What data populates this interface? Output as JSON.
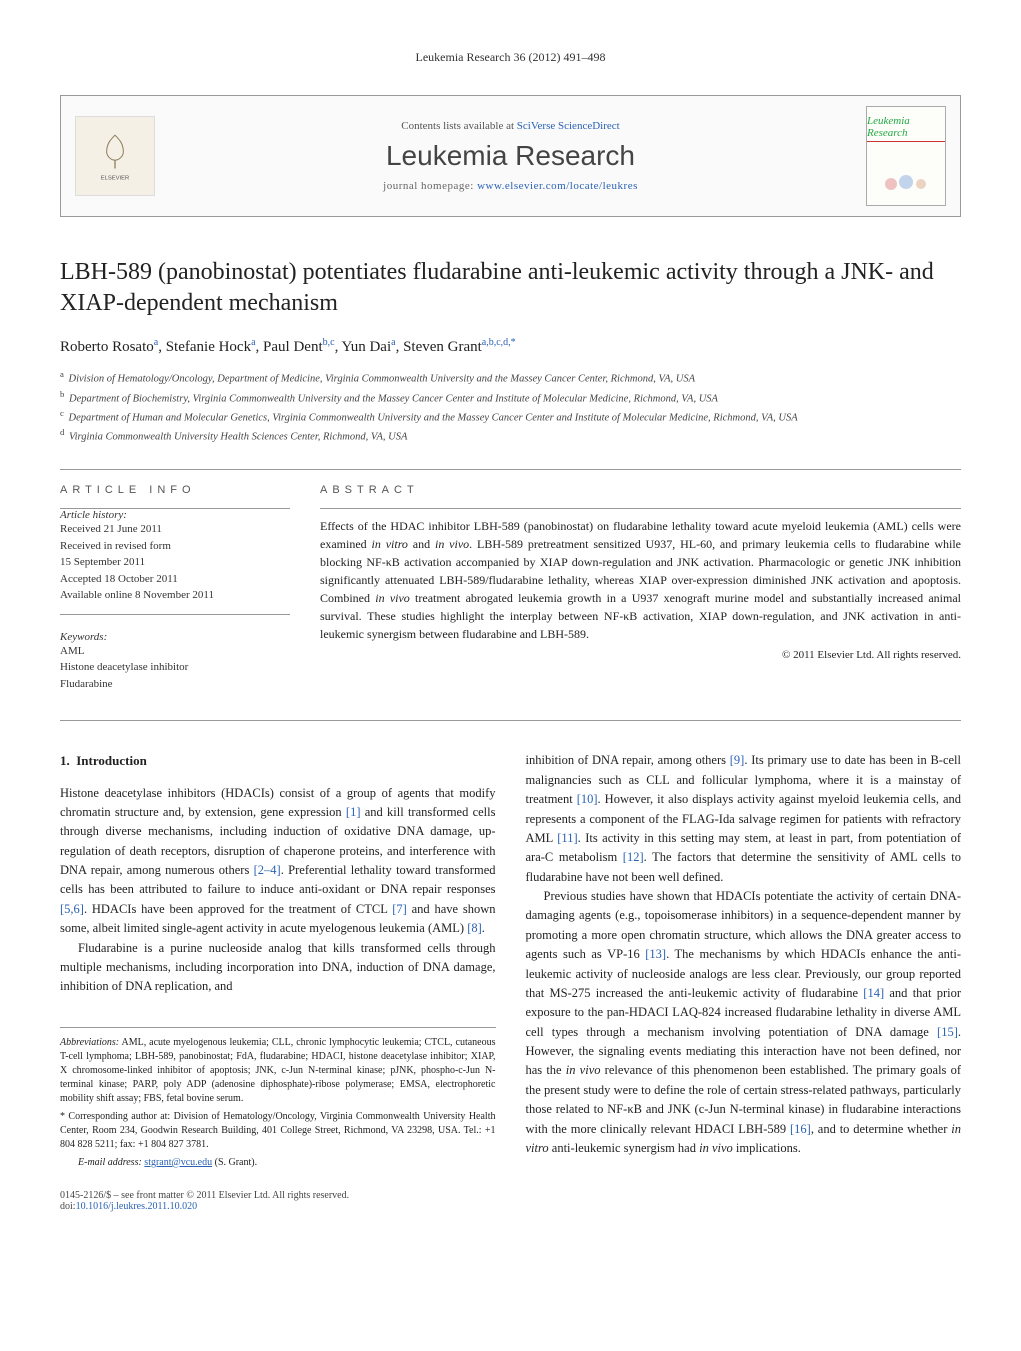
{
  "running_header": "Leukemia Research 36 (2012) 491–498",
  "masthead": {
    "contents_prefix": "Contents lists available at ",
    "contents_link": "SciVerse ScienceDirect",
    "journal_name": "Leukemia Research",
    "homepage_prefix": "journal homepage: ",
    "homepage_link": "www.elsevier.com/locate/leukres",
    "publisher_logo_label": "ELSEVIER",
    "cover_title": "Leukemia Research"
  },
  "title": "LBH-589 (panobinostat) potentiates fludarabine anti-leukemic activity through a JNK- and XIAP-dependent mechanism",
  "authors": [
    {
      "name": "Roberto Rosato",
      "sup": "a"
    },
    {
      "name": "Stefanie Hock",
      "sup": "a"
    },
    {
      "name": "Paul Dent",
      "sup": "b,c"
    },
    {
      "name": "Yun Dai",
      "sup": "a"
    },
    {
      "name": "Steven Grant",
      "sup": "a,b,c,d,*"
    }
  ],
  "affiliations": [
    {
      "sup": "a",
      "text": "Division of Hematology/Oncology, Department of Medicine, Virginia Commonwealth University and the Massey Cancer Center, Richmond, VA, USA"
    },
    {
      "sup": "b",
      "text": "Department of Biochemistry, Virginia Commonwealth University and the Massey Cancer Center and Institute of Molecular Medicine, Richmond, VA, USA"
    },
    {
      "sup": "c",
      "text": "Department of Human and Molecular Genetics, Virginia Commonwealth University and the Massey Cancer Center and Institute of Molecular Medicine, Richmond, VA, USA"
    },
    {
      "sup": "d",
      "text": "Virginia Commonwealth University Health Sciences Center, Richmond, VA, USA"
    }
  ],
  "article_info": {
    "heading": "article info",
    "history_label": "Article history:",
    "history": [
      "Received 21 June 2011",
      "Received in revised form",
      "15 September 2011",
      "Accepted 18 October 2011",
      "Available online 8 November 2011"
    ],
    "keywords_label": "Keywords:",
    "keywords": [
      "AML",
      "Histone deacetylase inhibitor",
      "Fludarabine"
    ]
  },
  "abstract": {
    "heading": "abstract",
    "text": "Effects of the HDAC inhibitor LBH-589 (panobinostat) on fludarabine lethality toward acute myeloid leukemia (AML) cells were examined in vitro and in vivo. LBH-589 pretreatment sensitized U937, HL-60, and primary leukemia cells to fludarabine while blocking NF-κB activation accompanied by XIAP down-regulation and JNK activation. Pharmacologic or genetic JNK inhibition significantly attenuated LBH-589/fludarabine lethality, whereas XIAP over-expression diminished JNK activation and apoptosis. Combined in vivo treatment abrogated leukemia growth in a U937 xenograft murine model and substantially increased animal survival. These studies highlight the interplay between NF-κB activation, XIAP down-regulation, and JNK activation in anti-leukemic synergism between fludarabine and LBH-589.",
    "copyright": "© 2011 Elsevier Ltd. All rights reserved."
  },
  "body": {
    "section_number": "1.",
    "section_title": "Introduction",
    "col1_p1": "Histone deacetylase inhibitors (HDACIs) consist of a group of agents that modify chromatin structure and, by extension, gene expression [1] and kill transformed cells through diverse mechanisms, including induction of oxidative DNA damage, up-regulation of death receptors, disruption of chaperone proteins, and interference with DNA repair, among numerous others [2–4]. Preferential lethality toward transformed cells has been attributed to failure to induce anti-oxidant or DNA repair responses [5,6]. HDACIs have been approved for the treatment of CTCL [7] and have shown some, albeit limited single-agent activity in acute myelogenous leukemia (AML) [8].",
    "col1_p2": "Fludarabine is a purine nucleoside analog that kills transformed cells through multiple mechanisms, including incorporation into DNA, induction of DNA damage, inhibition of DNA replication, and",
    "col2_p1": "inhibition of DNA repair, among others [9]. Its primary use to date has been in B-cell malignancies such as CLL and follicular lymphoma, where it is a mainstay of treatment [10]. However, it also displays activity against myeloid leukemia cells, and represents a component of the FLAG-Ida salvage regimen for patients with refractory AML [11]. Its activity in this setting may stem, at least in part, from potentiation of ara-C metabolism [12]. The factors that determine the sensitivity of AML cells to fludarabine have not been well defined.",
    "col2_p2": "Previous studies have shown that HDACIs potentiate the activity of certain DNA-damaging agents (e.g., topoisomerase inhibitors) in a sequence-dependent manner by promoting a more open chromatin structure, which allows the DNA greater access to agents such as VP-16 [13]. The mechanisms by which HDACIs enhance the anti-leukemic activity of nucleoside analogs are less clear. Previously, our group reported that MS-275 increased the anti-leukemic activity of fludarabine [14] and that prior exposure to the pan-HDACI LAQ-824 increased fludarabine lethality in diverse AML cell types through a mechanism involving potentiation of DNA damage [15]. However, the signaling events mediating this interaction have not been defined, nor has the in vivo relevance of this phenomenon been established. The primary goals of the present study were to define the role of certain stress-related pathways, particularly those related to NF-κB and JNK (c-Jun N-terminal kinase) in fludarabine interactions with the more clinically relevant HDACI LBH-589 [16], and to determine whether in vitro anti-leukemic synergism had in vivo implications."
  },
  "footnotes": {
    "abbrev_label": "Abbreviations:",
    "abbrev_text": " AML, acute myelogenous leukemia; CLL, chronic lymphocytic leukemia; CTCL, cutaneous T-cell lymphoma; LBH-589, panobinostat; FdA, fludarabine; HDACI, histone deacetylase inhibitor; XIAP, X chromosome-linked inhibitor of apoptosis; JNK, c-Jun N-terminal kinase; pJNK, phospho-c-Jun N-terminal kinase; PARP, poly ADP (adenosine diphosphate)-ribose polymerase; EMSA, electrophoretic mobility shift assay; FBS, fetal bovine serum.",
    "corr_label": "* Corresponding author at:",
    "corr_text": " Division of Hematology/Oncology, Virginia Commonwealth University Health Center, Room 234, Goodwin Research Building, 401 College Street, Richmond, VA 23298, USA. Tel.: +1 804 828 5211; fax: +1 804 827 3781.",
    "email_label": "E-mail address: ",
    "email": "stgrant@vcu.edu",
    "email_suffix": " (S. Grant)."
  },
  "footer": {
    "issn_line": "0145-2126/$ – see front matter © 2011 Elsevier Ltd. All rights reserved.",
    "doi_prefix": "doi:",
    "doi": "10.1016/j.leukres.2011.10.020"
  },
  "colors": {
    "link": "#2a62b4",
    "logo_bg": "#f5f0e6",
    "logo_orange": "#e67817",
    "logo_text": "#555",
    "cover_green": "#2a8a3a",
    "cover_red": "#c33"
  }
}
